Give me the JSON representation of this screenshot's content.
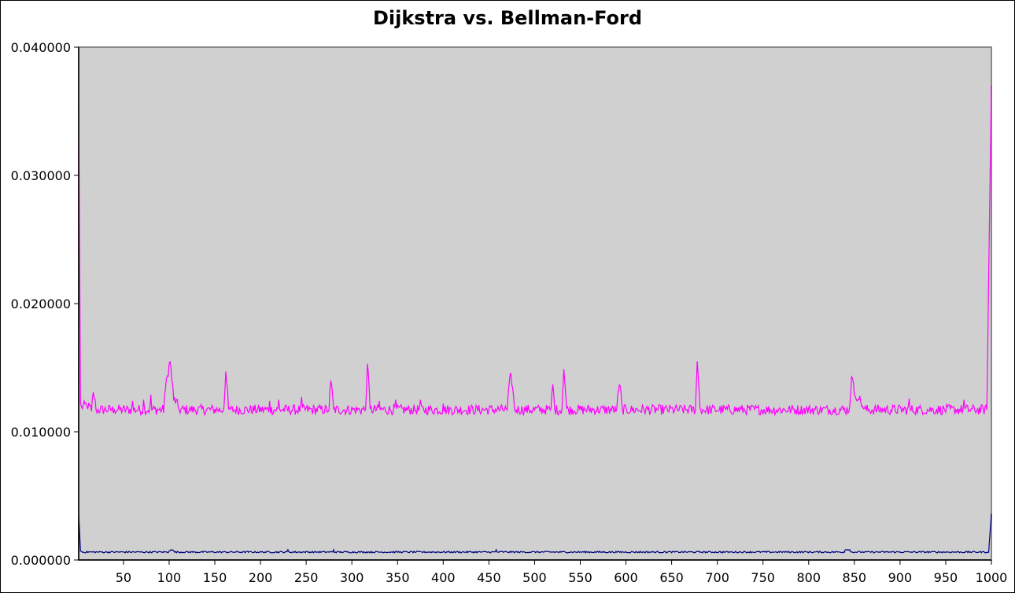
{
  "chart_data": {
    "type": "line",
    "title": "Dijkstra vs. Bellman-Ford",
    "xlabel": "",
    "ylabel": "",
    "xlim": [
      1,
      1000
    ],
    "ylim": [
      0,
      0.04
    ],
    "grid": false,
    "legend": "none",
    "plot_background": "#d0d0d0",
    "x_ticks": [
      "50",
      "100",
      "150",
      "200",
      "250",
      "300",
      "350",
      "400",
      "450",
      "500",
      "550",
      "600",
      "650",
      "700",
      "750",
      "800",
      "850",
      "900",
      "950",
      "1000"
    ],
    "y_ticks": [
      "0.000000",
      "0.010000",
      "0.020000",
      "0.030000",
      "0.040000"
    ],
    "series": [
      {
        "color": "#ff00ff",
        "baseline": 0.0116,
        "noise": 0.0004,
        "points": [
          [
            1,
            0.0355
          ],
          [
            3,
            0.0122
          ],
          [
            5,
            0.0118
          ],
          [
            10,
            0.012
          ],
          [
            15,
            0.0116
          ],
          [
            17,
            0.0131
          ],
          [
            20,
            0.0117
          ],
          [
            40,
            0.0117
          ],
          [
            60,
            0.0124
          ],
          [
            72,
            0.0125
          ],
          [
            80,
            0.0129
          ],
          [
            95,
            0.0128
          ],
          [
            101,
            0.0155
          ],
          [
            105,
            0.0125
          ],
          [
            110,
            0.0119
          ],
          [
            160,
            0.0119
          ],
          [
            162,
            0.0147
          ],
          [
            165,
            0.0118
          ],
          [
            210,
            0.0124
          ],
          [
            220,
            0.0125
          ],
          [
            245,
            0.0127
          ],
          [
            275,
            0.0117
          ],
          [
            277,
            0.014
          ],
          [
            280,
            0.0118
          ],
          [
            315,
            0.0117
          ],
          [
            317,
            0.0153
          ],
          [
            320,
            0.0118
          ],
          [
            330,
            0.0124
          ],
          [
            348,
            0.0125
          ],
          [
            375,
            0.0125
          ],
          [
            400,
            0.0122
          ],
          [
            470,
            0.0117
          ],
          [
            474,
            0.0146
          ],
          [
            478,
            0.0118
          ],
          [
            518,
            0.0118
          ],
          [
            520,
            0.0137
          ],
          [
            522,
            0.0118
          ],
          [
            530,
            0.0118
          ],
          [
            532,
            0.0149
          ],
          [
            535,
            0.0118
          ],
          [
            590,
            0.0118
          ],
          [
            593,
            0.0137
          ],
          [
            596,
            0.0118
          ],
          [
            676,
            0.0117
          ],
          [
            678,
            0.0155
          ],
          [
            681,
            0.0119
          ],
          [
            845,
            0.012
          ],
          [
            847,
            0.0143
          ],
          [
            850,
            0.0129
          ],
          [
            855,
            0.0125
          ],
          [
            860,
            0.0118
          ],
          [
            910,
            0.0126
          ],
          [
            970,
            0.0125
          ],
          [
            995,
            0.0117
          ],
          [
            1000,
            0.037
          ]
        ]
      },
      {
        "color": "#00007f",
        "baseline": 0.0006,
        "noise": 6e-05,
        "points": [
          [
            1,
            0.0036
          ],
          [
            3,
            0.0007
          ],
          [
            5,
            0.0006
          ],
          [
            100,
            0.0007
          ],
          [
            102,
            0.0008
          ],
          [
            105,
            0.0007
          ],
          [
            230,
            0.0008
          ],
          [
            280,
            0.0008
          ],
          [
            458,
            0.0008
          ],
          [
            840,
            0.0008
          ],
          [
            845,
            0.0008
          ],
          [
            997,
            0.0006
          ],
          [
            1000,
            0.0036
          ]
        ]
      }
    ]
  }
}
